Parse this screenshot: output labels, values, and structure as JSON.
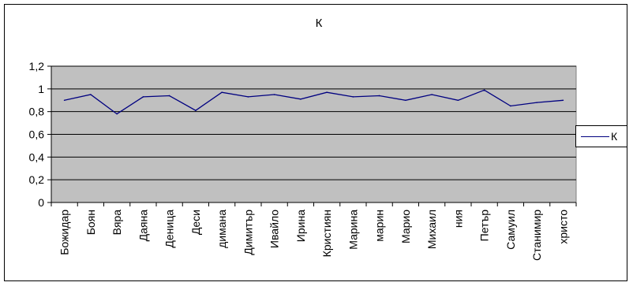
{
  "chart_data": {
    "type": "line",
    "title": "К",
    "xlabel": "",
    "ylabel": "",
    "ylim": [
      0,
      1.2
    ],
    "yticks": [
      "0",
      "0,2",
      "0,4",
      "0,6",
      "0,8",
      "1",
      "1,2"
    ],
    "ytick_values": [
      0,
      0.2,
      0.4,
      0.6,
      0.8,
      1.0,
      1.2
    ],
    "categories": [
      "Божидар",
      "Боян",
      "Вяра",
      "Даяна",
      "Деница",
      "Деси",
      "димана",
      "Димитър",
      "Ивайло",
      "Ирина",
      "Кристиян",
      "Марина",
      "марин",
      "Марио",
      "Михаил",
      "ния",
      "Петър",
      "Самуил",
      "Станимир",
      "христо"
    ],
    "series": [
      {
        "name": "К",
        "values": [
          0.9,
          0.95,
          0.78,
          0.93,
          0.94,
          0.81,
          0.97,
          0.93,
          0.95,
          0.91,
          0.97,
          0.93,
          0.94,
          0.9,
          0.95,
          0.9,
          0.99,
          0.85,
          0.88,
          0.9
        ]
      }
    ],
    "grid": true,
    "legend": "right",
    "colors": {
      "line": "#000080",
      "plot_background": "#c0c0c0",
      "gridline": "#000000"
    }
  }
}
